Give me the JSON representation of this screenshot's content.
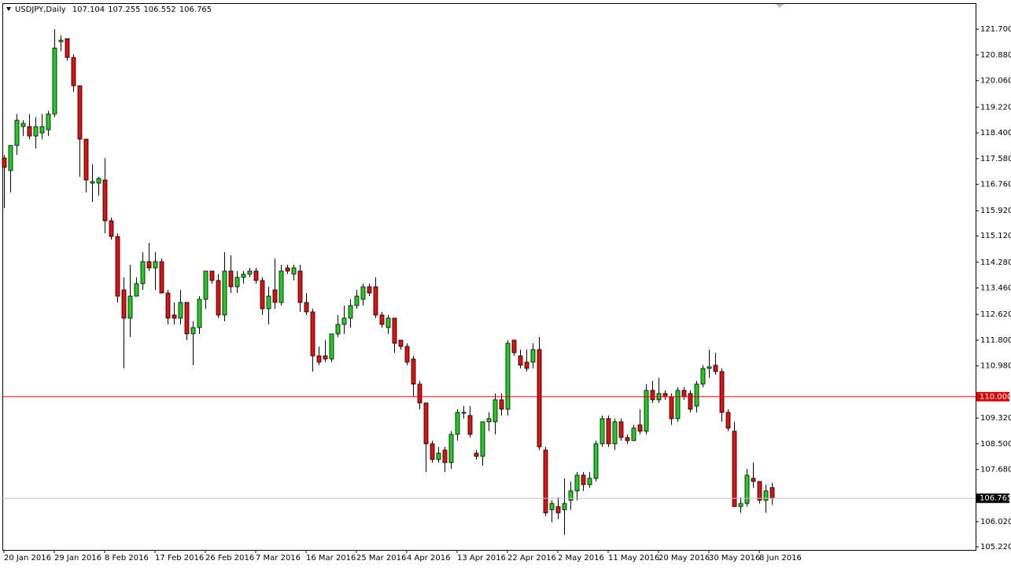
{
  "chart_data": {
    "type": "candlestick",
    "title": "USDJPY,Daily",
    "up_color": "#22cc22",
    "down_color": "#e01010",
    "ylim": [
      105.12,
      122.53
    ],
    "yticks": [
      {
        "value": 121.7,
        "label": "121.700"
      },
      {
        "value": 120.88,
        "label": "120.880"
      },
      {
        "value": 120.06,
        "label": "120.060"
      },
      {
        "value": 119.22,
        "label": "119.220"
      },
      {
        "value": 118.4,
        "label": "118.400"
      },
      {
        "value": 117.58,
        "label": "117.580"
      },
      {
        "value": 116.76,
        "label": "116.760"
      },
      {
        "value": 115.92,
        "label": "115.920"
      },
      {
        "value": 115.12,
        "label": "115.120"
      },
      {
        "value": 114.28,
        "label": "114.280"
      },
      {
        "value": 113.46,
        "label": "113.460"
      },
      {
        "value": 112.62,
        "label": "112.620"
      },
      {
        "value": 111.8,
        "label": "111.800"
      },
      {
        "value": 110.98,
        "label": "110.980"
      },
      {
        "value": 109.32,
        "label": "109.320"
      },
      {
        "value": 108.5,
        "label": "108.500"
      },
      {
        "value": 107.68,
        "label": "107.680"
      },
      {
        "value": 106.02,
        "label": "106.020"
      },
      {
        "value": 105.22,
        "label": "105.220"
      }
    ],
    "levels": [
      {
        "value": 110,
        "label": "110.000",
        "color": "#e00000"
      }
    ],
    "categories": [
      "20 Jan 2016",
      null,
      null,
      null,
      null,
      null,
      null,
      null,
      "29 Jan 2016",
      null,
      null,
      null,
      null,
      null,
      null,
      null,
      "8 Feb 2016",
      null,
      null,
      null,
      null,
      null,
      null,
      null,
      "17 Feb 2016",
      null,
      null,
      null,
      null,
      null,
      null,
      null,
      "26 Feb 2016",
      null,
      null,
      null,
      null,
      null,
      null,
      null,
      "7 Mar 2016",
      null,
      null,
      null,
      null,
      null,
      null,
      null,
      "16 Mar 2016",
      null,
      null,
      null,
      null,
      null,
      null,
      null,
      "25 Mar 2016",
      null,
      null,
      null,
      null,
      null,
      null,
      null,
      "4 Apr 2016",
      null,
      null,
      null,
      null,
      null,
      null,
      null,
      "13 Apr 2016",
      null,
      null,
      null,
      null,
      null,
      null,
      null,
      "22 Apr 2016",
      null,
      null,
      null,
      null,
      null,
      null,
      null,
      "2 May 2016",
      null,
      null,
      null,
      null,
      null,
      null,
      null,
      "11 May 2016",
      null,
      null,
      null,
      null,
      null,
      null,
      null,
      "20 May 2016",
      null,
      null,
      null,
      null,
      null,
      null,
      null,
      "30 May 2016",
      null,
      null,
      null,
      null,
      null,
      null,
      null,
      "8 Jun 2016",
      null,
      null
    ],
    "open": [
      117.6,
      117.2,
      118.0,
      118.6,
      118.6,
      118.3,
      118.4,
      118.5,
      119.0,
      121.3,
      121.4,
      120.8,
      119.9,
      118.2,
      116.8,
      116.8,
      116.9,
      115.6,
      115.1,
      113.4,
      112.5,
      113.2,
      113.6,
      114.3,
      114.1,
      114.3,
      113.3,
      112.6,
      112.5,
      113.0,
      112.0,
      112.2,
      113.1,
      114.0,
      113.7,
      112.6,
      114.0,
      113.5,
      113.8,
      113.9,
      114.0,
      113.7,
      112.8,
      113.4,
      113.0,
      114.1,
      113.9,
      114.0,
      113.0,
      112.7,
      111.3,
      111.3,
      111.2,
      112.0,
      112.3,
      112.5,
      112.9,
      113.1,
      113.5,
      113.5,
      112.6,
      112.2,
      112.5,
      111.8,
      111.6,
      111.2,
      110.4,
      109.8,
      108.5,
      108.0,
      108.3,
      107.9,
      108.8,
      109.5,
      109.4,
      108.2,
      108.1,
      109.2,
      109.2,
      109.9,
      109.6,
      111.8,
      111.3,
      111.1,
      111.1,
      111.5,
      108.3,
      106.4,
      106.5,
      106.4,
      106.7,
      107.0,
      107.5,
      107.2,
      107.4,
      108.5,
      109.3,
      108.5,
      109.2,
      108.7,
      108.6,
      109.1,
      108.9,
      110.2,
      109.9,
      110.1,
      110.0,
      109.3,
      110.2,
      110.1,
      109.7,
      110.4,
      110.9,
      111.0,
      110.8,
      109.5,
      108.9,
      106.5,
      106.6,
      107.4,
      107.3,
      106.7,
      107.104
    ],
    "high": [
      117.7,
      118.0,
      119.0,
      118.8,
      119.0,
      118.9,
      119.0,
      119.1,
      121.7,
      121.5,
      121.4,
      120.9,
      119.9,
      118.2,
      117.4,
      117.0,
      117.6,
      115.7,
      115.2,
      113.8,
      114.2,
      113.8,
      114.6,
      114.9,
      114.6,
      114.4,
      113.4,
      113.0,
      113.4,
      113.0,
      112.4,
      113.2,
      114.0,
      114.0,
      113.9,
      114.6,
      114.5,
      114.0,
      114.0,
      114.1,
      114.1,
      113.8,
      113.5,
      114.4,
      114.2,
      114.2,
      114.2,
      114.2,
      113.3,
      112.8,
      111.6,
      111.8,
      112.0,
      112.6,
      112.9,
      113.1,
      113.4,
      113.6,
      113.6,
      113.8,
      112.7,
      112.6,
      112.5,
      111.8,
      111.7,
      111.3,
      110.5,
      109.8,
      108.6,
      108.4,
      108.4,
      108.9,
      109.6,
      109.7,
      109.7,
      108.3,
      109.2,
      109.5,
      110.1,
      110.1,
      111.8,
      111.8,
      111.5,
      111.5,
      111.7,
      111.9,
      108.4,
      106.7,
      106.8,
      107.4,
      107.3,
      107.6,
      107.6,
      107.6,
      108.6,
      109.4,
      109.4,
      109.3,
      109.3,
      108.8,
      109.1,
      109.6,
      110.4,
      110.5,
      110.6,
      110.2,
      110.1,
      110.3,
      110.3,
      110.2,
      110.5,
      111.0,
      111.5,
      111.4,
      110.9,
      109.6,
      109.2,
      106.8,
      107.7,
      107.9,
      107.3,
      107.2,
      107.255
    ],
    "low": [
      116.0,
      116.5,
      117.7,
      118.3,
      118.2,
      117.9,
      118.2,
      118.3,
      118.9,
      121.0,
      120.7,
      119.7,
      117.0,
      116.5,
      116.2,
      116.4,
      115.2,
      115.0,
      113.0,
      110.9,
      111.9,
      113.2,
      113.4,
      114.0,
      113.4,
      113.3,
      112.3,
      112.3,
      112.3,
      111.8,
      111.0,
      112.0,
      112.8,
      113.6,
      112.5,
      112.4,
      113.3,
      113.3,
      113.6,
      113.8,
      113.6,
      112.6,
      112.3,
      112.8,
      112.9,
      113.9,
      113.7,
      112.7,
      112.6,
      110.8,
      111.0,
      111.1,
      111.1,
      111.9,
      112.0,
      112.2,
      112.8,
      112.9,
      113.2,
      112.5,
      112.2,
      112.0,
      111.4,
      111.5,
      111.0,
      110.0,
      109.6,
      107.6,
      107.9,
      107.9,
      107.6,
      107.7,
      108.6,
      109.3,
      108.7,
      108.0,
      107.8,
      108.9,
      108.8,
      109.4,
      109.4,
      111.3,
      110.9,
      110.8,
      110.9,
      108.3,
      106.2,
      106.0,
      106.1,
      105.6,
      106.4,
      106.7,
      107.0,
      107.1,
      107.3,
      108.4,
      108.4,
      108.3,
      108.6,
      108.5,
      108.6,
      108.8,
      108.8,
      109.8,
      109.8,
      109.9,
      109.1,
      109.2,
      109.9,
      109.5,
      109.5,
      110.3,
      110.6,
      110.7,
      109.2,
      108.9,
      106.5,
      106.3,
      106.5,
      107.1,
      106.6,
      106.3,
      106.552
    ],
    "close": [
      117.3,
      118.0,
      118.8,
      118.7,
      118.3,
      118.6,
      118.6,
      119.0,
      121.1,
      121.35,
      120.8,
      119.9,
      118.2,
      116.9,
      116.85,
      116.95,
      115.6,
      115.1,
      113.2,
      112.5,
      113.2,
      113.6,
      114.3,
      114.1,
      114.3,
      113.3,
      112.5,
      112.5,
      113.0,
      112.0,
      112.2,
      113.1,
      114.0,
      113.7,
      112.6,
      114.0,
      113.5,
      113.8,
      113.9,
      114.0,
      113.7,
      112.8,
      113.2,
      113.0,
      114.0,
      114.0,
      114.1,
      113.0,
      112.7,
      111.3,
      111.1,
      111.2,
      112.0,
      112.3,
      112.5,
      112.9,
      113.2,
      113.5,
      113.3,
      112.6,
      112.3,
      112.5,
      111.7,
      111.6,
      111.1,
      110.4,
      109.8,
      108.5,
      108.0,
      108.2,
      107.9,
      108.8,
      109.5,
      109.5,
      108.8,
      108.1,
      109.2,
      109.3,
      109.9,
      109.6,
      111.7,
      111.4,
      111.0,
      110.9,
      111.5,
      108.4,
      106.3,
      106.6,
      106.3,
      106.6,
      107.0,
      107.5,
      107.2,
      107.4,
      108.5,
      109.3,
      108.5,
      109.2,
      108.7,
      108.6,
      109.0,
      108.9,
      110.2,
      109.9,
      110.1,
      110.0,
      109.3,
      110.2,
      110.0,
      109.6,
      110.4,
      110.9,
      110.95,
      110.8,
      109.5,
      109.0,
      106.5,
      106.6,
      107.5,
      107.3,
      106.7,
      107.0,
      106.765
    ]
  }
}
